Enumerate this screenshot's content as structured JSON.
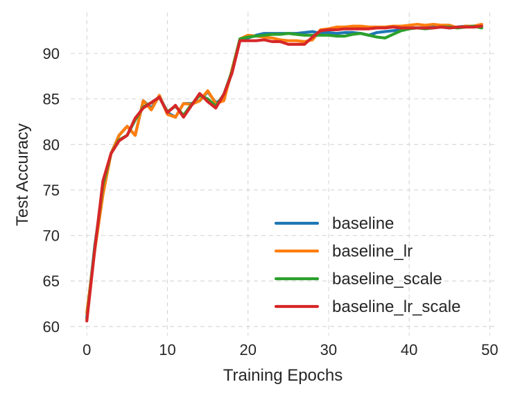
{
  "chart_data": {
    "type": "line",
    "xlabel": "Training Epochs",
    "ylabel": "Test Accuracy",
    "xlim": [
      -2,
      51
    ],
    "ylim": [
      59,
      94.5
    ],
    "xticks": [
      0,
      10,
      20,
      30,
      40,
      50
    ],
    "yticks": [
      60,
      65,
      70,
      75,
      80,
      85,
      90
    ],
    "grid": true,
    "legend_position": "lower-right",
    "x": [
      0,
      1,
      2,
      3,
      4,
      5,
      6,
      7,
      8,
      9,
      10,
      11,
      12,
      13,
      14,
      15,
      16,
      17,
      18,
      19,
      20,
      21,
      22,
      23,
      24,
      25,
      26,
      27,
      28,
      29,
      30,
      31,
      32,
      33,
      34,
      35,
      36,
      37,
      38,
      39,
      40,
      41,
      42,
      43,
      44,
      45,
      46,
      47,
      48,
      49
    ],
    "series": [
      {
        "name": "baseline",
        "color": "#1f77b4",
        "values": [
          61.0,
          69.0,
          75.0,
          79.0,
          81.0,
          82.0,
          81.0,
          84.8,
          84.0,
          85.3,
          83.5,
          83.0,
          84.5,
          84.5,
          84.8,
          85.8,
          84.6,
          85.0,
          88.0,
          91.5,
          91.7,
          92.0,
          92.2,
          92.2,
          92.2,
          92.2,
          92.2,
          92.3,
          92.4,
          92.2,
          92.3,
          92.2,
          92.3,
          92.3,
          92.2,
          92.0,
          92.3,
          92.4,
          92.5,
          92.6,
          92.8,
          92.8,
          92.8,
          92.9,
          92.9,
          92.8,
          92.9,
          93.0,
          92.9,
          93.0
        ]
      },
      {
        "name": "baseline_lr",
        "color": "#ff7f0e",
        "values": [
          61.5,
          68.5,
          74.5,
          79.0,
          81.0,
          82.0,
          81.0,
          84.8,
          83.8,
          85.4,
          83.3,
          83.0,
          84.5,
          84.4,
          84.8,
          85.9,
          84.5,
          84.8,
          88.2,
          91.6,
          92.0,
          91.9,
          91.8,
          91.7,
          91.5,
          91.4,
          91.4,
          91.3,
          91.5,
          92.6,
          92.7,
          92.9,
          92.9,
          93.0,
          93.0,
          92.9,
          92.9,
          92.9,
          93.0,
          93.0,
          93.1,
          93.2,
          93.1,
          93.2,
          93.1,
          93.1,
          92.8,
          93.0,
          93.0,
          93.2
        ]
      },
      {
        "name": "baseline_scale",
        "color": "#2ca02c",
        "values": [
          60.8,
          68.8,
          75.6,
          79.0,
          80.5,
          81.0,
          82.7,
          84.1,
          84.6,
          85.2,
          83.6,
          84.2,
          83.2,
          84.4,
          85.4,
          85.0,
          84.2,
          85.5,
          88.0,
          91.6,
          91.8,
          91.9,
          92.0,
          92.1,
          92.1,
          92.2,
          92.1,
          92.0,
          92.0,
          92.0,
          92.0,
          91.9,
          91.9,
          92.1,
          92.2,
          92.0,
          91.8,
          91.7,
          92.1,
          92.5,
          92.7,
          92.8,
          92.7,
          92.8,
          92.9,
          92.9,
          92.8,
          92.9,
          93.0,
          92.8
        ]
      },
      {
        "name": "baseline_lr_scale",
        "color": "#d62728",
        "values": [
          60.6,
          68.6,
          76.0,
          79.0,
          80.4,
          81.0,
          82.9,
          84.0,
          84.6,
          85.2,
          83.5,
          84.3,
          83.0,
          84.3,
          85.6,
          84.7,
          84.0,
          85.5,
          87.8,
          91.4,
          91.4,
          91.4,
          91.5,
          91.3,
          91.3,
          91.0,
          91.0,
          91.0,
          91.8,
          92.5,
          92.6,
          92.6,
          92.7,
          92.7,
          92.7,
          92.7,
          92.8,
          92.8,
          92.9,
          92.8,
          92.8,
          92.8,
          92.8,
          92.8,
          92.9,
          92.8,
          92.9,
          92.9,
          92.9,
          93.0
        ]
      }
    ]
  }
}
